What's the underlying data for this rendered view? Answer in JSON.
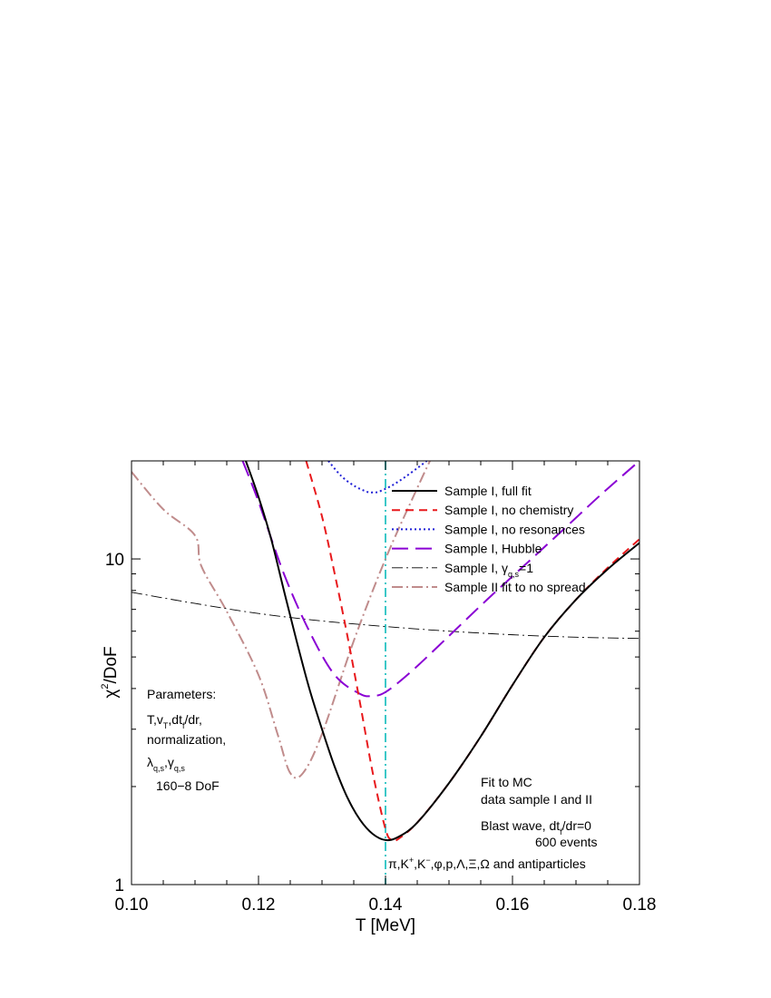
{
  "chart_data": {
    "type": "line",
    "xlabel": "T [MeV]",
    "ylabel": "χ²/DoF",
    "xlim": [
      0.1,
      0.18
    ],
    "ylim": [
      1,
      20
    ],
    "yscale": "log",
    "x_tick_labels": [
      "0.10",
      "0.12",
      "0.14",
      "0.16",
      "0.18"
    ],
    "x_ticks": [
      0.1,
      0.12,
      0.14,
      0.16,
      0.18
    ],
    "y_tick_labels": [
      "1",
      "10"
    ],
    "y_ticks": [
      1,
      10
    ],
    "legend_position": "top-right",
    "series": [
      {
        "name": "Sample I, full fit",
        "color": "#000000",
        "dash": "solid",
        "x": [
          0.118,
          0.12,
          0.122,
          0.124,
          0.126,
          0.128,
          0.13,
          0.132,
          0.134,
          0.136,
          0.138,
          0.14,
          0.142,
          0.145,
          0.15,
          0.155,
          0.16,
          0.165,
          0.17,
          0.175,
          0.18
        ],
        "y": [
          20,
          15.5,
          11.5,
          8.0,
          5.6,
          4.0,
          3.0,
          2.3,
          1.85,
          1.58,
          1.43,
          1.37,
          1.4,
          1.55,
          2.05,
          2.85,
          4.1,
          5.75,
          7.5,
          9.3,
          11.2
        ]
      },
      {
        "name": "Sample I, no chemistry",
        "color": "#e8191c",
        "dash": "dashed",
        "x": [
          0.1275,
          0.13,
          0.132,
          0.134,
          0.136,
          0.138,
          0.14,
          0.141,
          0.142,
          0.145,
          0.15,
          0.155,
          0.16,
          0.165,
          0.17,
          0.175,
          0.18
        ],
        "y": [
          20,
          13.5,
          9.0,
          5.8,
          3.6,
          2.2,
          1.48,
          1.37,
          1.38,
          1.55,
          2.05,
          2.85,
          4.1,
          5.75,
          7.5,
          9.4,
          11.5
        ]
      },
      {
        "name": "Sample I, no resonances",
        "color": "#1f1fd6",
        "dash": "dotted",
        "x": [
          0.131,
          0.133,
          0.135,
          0.137,
          0.138,
          0.139,
          0.141,
          0.143,
          0.145,
          0.1465
        ],
        "y": [
          20,
          18.0,
          16.8,
          16.1,
          16.0,
          16.1,
          16.8,
          17.8,
          19.0,
          20
        ]
      },
      {
        "name": "Sample I, Hubble",
        "color": "#8a00d4",
        "dash": "longdash",
        "x": [
          0.1175,
          0.12,
          0.124,
          0.128,
          0.132,
          0.136,
          0.138,
          0.14,
          0.144,
          0.15,
          0.156,
          0.162,
          0.168,
          0.174,
          0.18
        ],
        "y": [
          20,
          15.0,
          9.0,
          6.0,
          4.4,
          3.85,
          3.8,
          3.9,
          4.5,
          5.8,
          7.5,
          9.6,
          12.3,
          15.8,
          20
        ]
      },
      {
        "name": "Sample I, γq,s=1",
        "color": "#000000",
        "dash": "dashdot",
        "x": [
          0.1,
          0.11,
          0.12,
          0.13,
          0.14,
          0.15,
          0.16,
          0.17,
          0.18
        ],
        "y": [
          7.9,
          7.3,
          6.8,
          6.45,
          6.2,
          6.0,
          5.85,
          5.75,
          5.7
        ]
      },
      {
        "name": "Sample II  fit to no spread",
        "color": "#c08c8c",
        "dash": "dashdot",
        "x": [
          0.1,
          0.105,
          0.11,
          0.111,
          0.115,
          0.12,
          0.123,
          0.125,
          0.127,
          0.13,
          0.135,
          0.14,
          0.145,
          0.147
        ],
        "y": [
          18.5,
          14.2,
          11.8,
          9.5,
          6.9,
          4.4,
          2.9,
          2.2,
          2.2,
          2.9,
          5.6,
          10.0,
          16.5,
          20
        ]
      }
    ],
    "reference_line": {
      "x": 0.14,
      "color": "#3bc8c8",
      "dash": "dashed"
    },
    "annotations": {
      "parameters": [
        "Parameters:",
        "T,v",
        "normalization,",
        "λ",
        "160−8 DoF"
      ],
      "fit_note": [
        "Fit to MC",
        "data sample I and II",
        "Blast wave, dt",
        "600 events",
        "π,K",
        "and antiparticles"
      ]
    }
  },
  "annot_text": {
    "params_title": "Parameters:",
    "params_line1_T": "T,v",
    "params_line1_sub": "T",
    "params_line1_rest": ",dt",
    "params_line1_sub2": "f",
    "params_line1_tail": "/dr,",
    "params_line2": "normalization,",
    "params_line3_lambda": "λ",
    "params_line3_sub": "q,s",
    "params_line3_gamma": ",γ",
    "params_line3_sub2": "q,s",
    "params_line4": "160−8 DoF",
    "fit_line1": "Fit to MC",
    "fit_line2": "data sample I and II",
    "fit_line3_a": "Blast wave, dt",
    "fit_line3_sub": "f",
    "fit_line3_b": "/dr=0",
    "fit_line4": "600 events",
    "particles_a": "π,K",
    "particles_sup1": "+",
    "particles_b": ",K",
    "particles_sup2": "−",
    "particles_c": ",φ,p,Λ,Ξ,Ω and antiparticles",
    "ylabel_chi": "χ",
    "ylabel_sup": "2",
    "ylabel_rest": "/DoF",
    "legend_gamma_a": "Sample I, ",
    "legend_gamma_b": "γ",
    "legend_gamma_sub": "q,s",
    "legend_gamma_c": "=1"
  }
}
